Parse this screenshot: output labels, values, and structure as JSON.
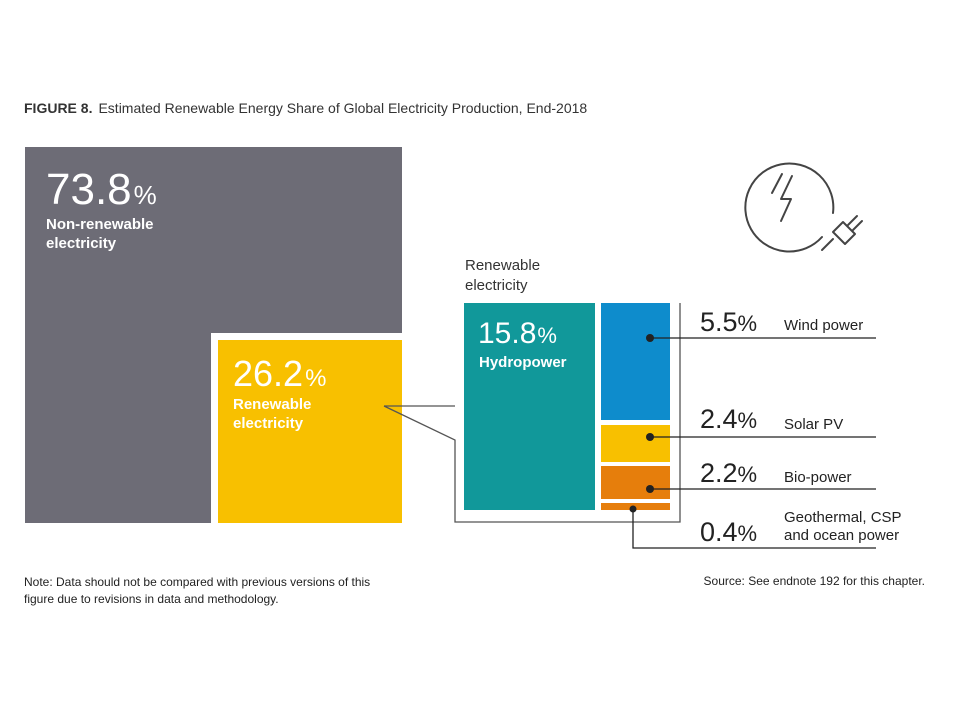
{
  "figure": {
    "number": "FIGURE 8.",
    "title": "Estimated Renewable Energy Share of Global Electricity Production, End-2018"
  },
  "chart_data": {
    "type": "treemap",
    "unit": "%",
    "main": [
      {
        "value": "73.8",
        "label_line1": "Non-renewable",
        "label_line2": "electricity",
        "color": "#6d6c76"
      },
      {
        "value": "26.2",
        "label_line1": "Renewable",
        "label_line2": "electricity",
        "color": "#f8c000"
      }
    ],
    "breakdown_title_line1": "Renewable",
    "breakdown_title_line2": "electricity",
    "renewables": [
      {
        "name": "Hydropower",
        "value": "15.8",
        "color": "#11989a"
      },
      {
        "name": "Wind power",
        "value": "5.5",
        "color": "#0e8ccc"
      },
      {
        "name": "Solar PV",
        "value": "2.4",
        "color": "#f8c000"
      },
      {
        "name": "Bio-power",
        "value": "2.2",
        "color": "#e67e0c"
      },
      {
        "name_line1": "Geothermal, CSP",
        "name_line2": "and ocean power",
        "value": "0.4",
        "color": "#e67e0c"
      }
    ]
  },
  "icon": "electric-plug-icon",
  "note": {
    "line1": "Note: Data should not be compared with previous versions of this",
    "line2": "figure due to revisions in data and methodology."
  },
  "source": "Source: See endnote 192 for this chapter."
}
